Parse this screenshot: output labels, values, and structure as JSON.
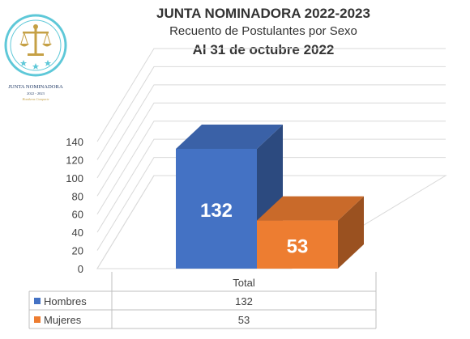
{
  "logo": {
    "line1": "JUNTA NOMINADORA",
    "line2": "2022 - 2023",
    "line3": "Honduras Comparte"
  },
  "header": {
    "title": "JUNTA NOMINADORA 2022-2023",
    "subtitle": "Recuento de Postulantes por Sexo",
    "date": "Al 31 de octubre 2022"
  },
  "colors": {
    "hombres": "#4472C4",
    "mujeres": "#ED7D31",
    "gold": "#C5A045",
    "teal": "#5EC8D8"
  },
  "chart_data": {
    "type": "bar",
    "categories": [
      "Total"
    ],
    "series": [
      {
        "name": "Hombres",
        "values": [
          132
        ]
      },
      {
        "name": "Mujeres",
        "values": [
          53
        ]
      }
    ],
    "ylim": [
      0,
      140
    ],
    "yticks": [
      0,
      20,
      40,
      60,
      80,
      100,
      120,
      140
    ],
    "grid": true,
    "legend": "data-table-below"
  }
}
